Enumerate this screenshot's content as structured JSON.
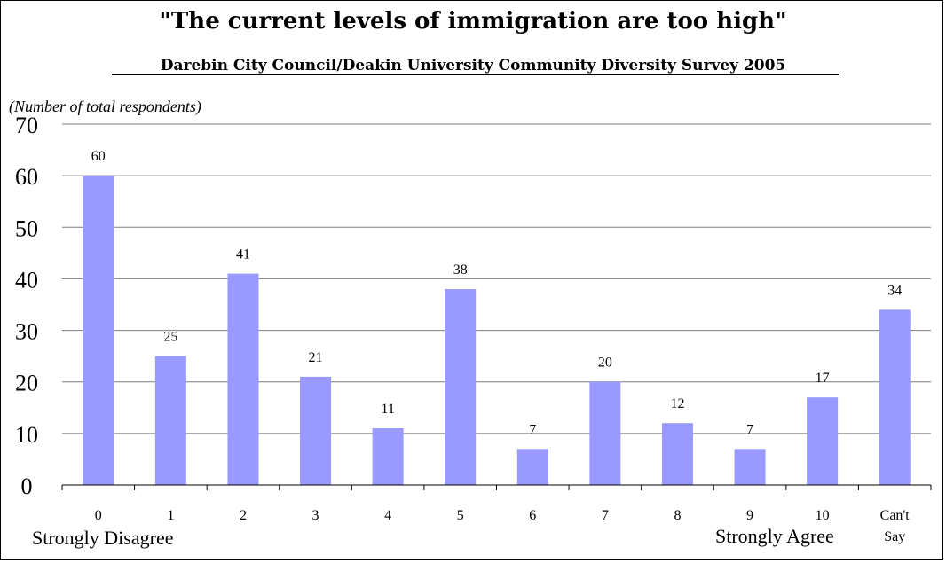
{
  "chart_data": {
    "type": "bar",
    "title": "\"The current levels of immigration are too high\"",
    "subtitle": "Darebin City Council/Deakin University Community Diversity Survey 2005",
    "ylabel": "(Number of total respondents)",
    "xlabel": "",
    "categories": [
      "0",
      "1",
      "2",
      "3",
      "4",
      "5",
      "6",
      "7",
      "8",
      "9",
      "10",
      "Can't Say"
    ],
    "values": [
      60,
      25,
      41,
      21,
      11,
      38,
      7,
      20,
      12,
      7,
      17,
      34
    ],
    "data_labels": [
      "60",
      "25",
      "41",
      "21",
      "11",
      "38",
      "7",
      "20",
      "12",
      "7",
      "17",
      "34"
    ],
    "ylim": [
      0,
      70
    ],
    "yticks": [
      0,
      10,
      20,
      30,
      40,
      50,
      60,
      70
    ],
    "grid": true,
    "legend": "none",
    "bar_color": "#9999ff",
    "annotations": {
      "left": "Strongly Disagree",
      "right": "Strongly Agree"
    }
  }
}
